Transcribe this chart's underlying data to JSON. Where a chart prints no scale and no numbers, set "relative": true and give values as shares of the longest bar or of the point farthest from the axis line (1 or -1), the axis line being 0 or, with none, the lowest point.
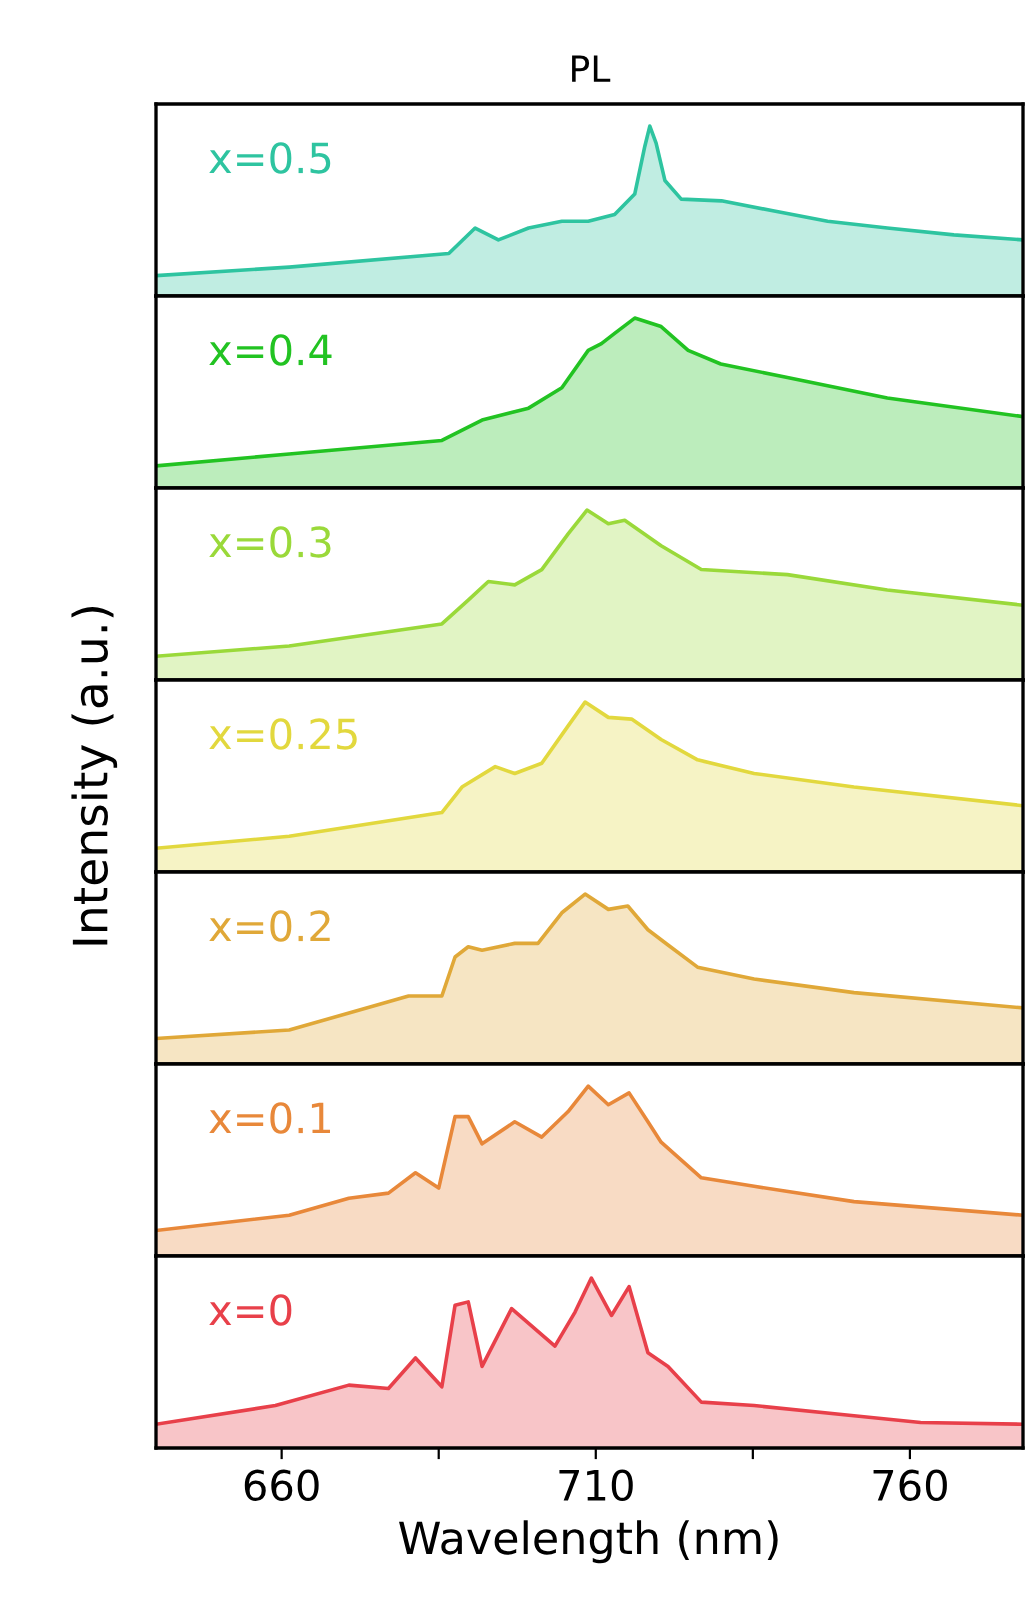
{
  "chart_data": [
    {
      "type": "area",
      "title": "PL",
      "relative": true,
      "xlim": [
        640,
        778
      ],
      "tick_labels": false,
      "series": [
        {
          "name": "x=0.5",
          "color": "#2ec4a0",
          "x": [
            640,
            661.2,
            686.6,
            690.8,
            694.5,
            699.3,
            704.6,
            708.8,
            713.0,
            716.2,
            717.8,
            718.6,
            719.6,
            721.0,
            723.6,
            730.0,
            738.4,
            746.9,
            756.4,
            767.0,
            778
          ],
          "values": [
            0.12,
            0.17,
            0.25,
            0.4,
            0.33,
            0.4,
            0.44,
            0.44,
            0.48,
            0.6,
            0.88,
            1,
            0.9,
            0.68,
            0.57,
            0.56,
            0.5,
            0.44,
            0.4,
            0.36,
            0.33
          ]
        }
      ]
    },
    {
      "type": "area",
      "relative": true,
      "xlim": [
        640,
        778
      ],
      "tick_labels": false,
      "series": [
        {
          "name": "x=0.4",
          "color": "#22c322",
          "x": [
            640,
            661.2,
            685.5,
            691.9,
            699.3,
            704.6,
            708.8,
            710.9,
            713.0,
            716.2,
            720.4,
            724.7,
            729.9,
            740.5,
            756.4,
            778
          ],
          "values": [
            0.13,
            0.2,
            0.28,
            0.4,
            0.47,
            0.59,
            0.81,
            0.85,
            0.91,
            1,
            0.95,
            0.81,
            0.73,
            0.65,
            0.53,
            0.42
          ]
        }
      ]
    },
    {
      "type": "area",
      "relative": true,
      "xlim": [
        640,
        778
      ],
      "tick_labels": false,
      "series": [
        {
          "name": "x=0.3",
          "color": "#9ad93a",
          "x": [
            640,
            661.2,
            685.5,
            689.7,
            692.9,
            697.1,
            701.4,
            705.6,
            708.6,
            712.0,
            714.6,
            720.4,
            726.8,
            740.5,
            756.4,
            778
          ],
          "values": [
            0.14,
            0.2,
            0.33,
            0.47,
            0.58,
            0.56,
            0.65,
            0.86,
            1,
            0.92,
            0.94,
            0.79,
            0.65,
            0.62,
            0.53,
            0.44
          ]
        }
      ]
    },
    {
      "type": "area",
      "relative": true,
      "ylabel": "Intensity (a.u.)",
      "xlim": [
        640,
        778
      ],
      "tick_labels": false,
      "series": [
        {
          "name": "x=0.25",
          "color": "#e2d83e",
          "x": [
            640,
            661.2,
            685.5,
            688.7,
            694.0,
            697.1,
            701.4,
            705.6,
            708.3,
            712.0,
            715.7,
            720.4,
            726.2,
            735.2,
            751.1,
            778
          ],
          "values": [
            0.14,
            0.21,
            0.35,
            0.5,
            0.62,
            0.58,
            0.64,
            0.86,
            1,
            0.91,
            0.9,
            0.78,
            0.66,
            0.58,
            0.5,
            0.39
          ]
        }
      ]
    },
    {
      "type": "area",
      "relative": true,
      "xlim": [
        640,
        778
      ],
      "tick_labels": false,
      "series": [
        {
          "name": "x=0.2",
          "color": "#e0a838",
          "x": [
            640,
            661.2,
            680.2,
            685.5,
            687.6,
            689.7,
            691.9,
            697.1,
            700.8,
            704.6,
            708.3,
            712.0,
            715.1,
            718.3,
            721.5,
            726.2,
            735.2,
            751.1,
            778
          ],
          "values": [
            0.15,
            0.2,
            0.4,
            0.4,
            0.63,
            0.69,
            0.67,
            0.71,
            0.71,
            0.89,
            1,
            0.91,
            0.93,
            0.79,
            0.7,
            0.57,
            0.5,
            0.42,
            0.33
          ]
        }
      ]
    },
    {
      "type": "area",
      "relative": true,
      "xlim": [
        640,
        778
      ],
      "tick_labels": false,
      "series": [
        {
          "name": "x=0.1",
          "color": "#e8883a",
          "x": [
            640,
            661.2,
            670.7,
            677.0,
            681.3,
            685.0,
            687.6,
            689.7,
            691.9,
            697.1,
            701.4,
            705.6,
            708.8,
            712.0,
            715.3,
            718.3,
            720.4,
            726.8,
            735.2,
            751.1,
            778
          ],
          "values": [
            0.15,
            0.24,
            0.34,
            0.37,
            0.49,
            0.4,
            0.82,
            0.82,
            0.66,
            0.79,
            0.7,
            0.85,
            1,
            0.89,
            0.96,
            0.79,
            0.67,
            0.46,
            0.41,
            0.32,
            0.24
          ]
        }
      ]
    },
    {
      "type": "area",
      "relative": true,
      "xlabel": "Wavelength (nm)",
      "xlim": [
        640,
        778
      ],
      "xticks": [
        660,
        {
          "value": 685,
          "label": null
        },
        710,
        {
          "value": 735,
          "label": null
        },
        760
      ],
      "tick_labels": "x",
      "series": [
        {
          "name": "x=0",
          "color": "#e8404a",
          "x": [
            640,
            659.0,
            670.7,
            677.0,
            681.3,
            685.5,
            687.6,
            689.7,
            691.9,
            696.6,
            703.5,
            706.7,
            709.3,
            712.5,
            715.3,
            718.3,
            721.5,
            726.8,
            735.2,
            751.1,
            761.7,
            778
          ],
          "values": [
            0.14,
            0.25,
            0.37,
            0.35,
            0.53,
            0.36,
            0.84,
            0.86,
            0.48,
            0.82,
            0.6,
            0.8,
            1,
            0.78,
            0.95,
            0.56,
            0.48,
            0.27,
            0.25,
            0.19,
            0.15,
            0.14
          ]
        }
      ]
    }
  ]
}
